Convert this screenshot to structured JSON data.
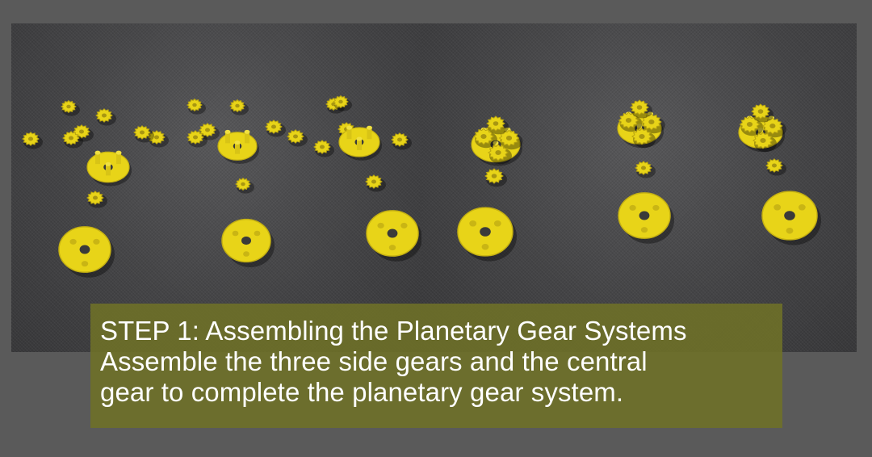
{
  "caption": {
    "heading": "STEP 1: Assembling the Planetary Gear Systems",
    "line1": "Assemble the three side gears and the central",
    "line2": "gear to complete the planetary gear system."
  },
  "colors": {
    "page_background": "#5a5a5a",
    "caption_background": "#6e7028",
    "gear_yellow": "#e8d418",
    "caption_text": "#ffffff"
  }
}
